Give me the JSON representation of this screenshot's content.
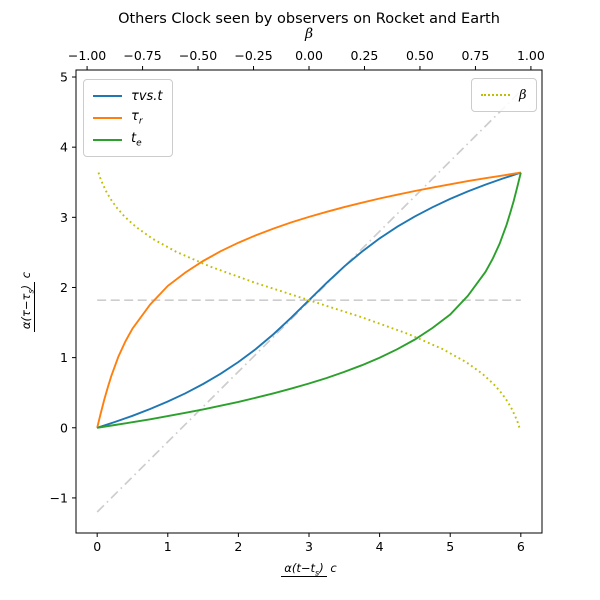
{
  "title": "Others Clock seen by observers on Rocket and Earth",
  "top_axis": {
    "label": "β",
    "ticks": [
      {
        "v": -1.0,
        "label": "−1.00"
      },
      {
        "v": -0.75,
        "label": "−0.75"
      },
      {
        "v": -0.5,
        "label": "−0.50"
      },
      {
        "v": -0.25,
        "label": "−0.25"
      },
      {
        "v": 0.0,
        "label": "0.00"
      },
      {
        "v": 0.25,
        "label": "0.25"
      },
      {
        "v": 0.5,
        "label": "0.50"
      },
      {
        "v": 0.75,
        "label": "0.75"
      },
      {
        "v": 1.0,
        "label": "1.00"
      }
    ]
  },
  "bottom_axis": {
    "ticks": [
      {
        "v": 0,
        "label": "0"
      },
      {
        "v": 1,
        "label": "1"
      },
      {
        "v": 2,
        "label": "2"
      },
      {
        "v": 3,
        "label": "3"
      },
      {
        "v": 4,
        "label": "4"
      },
      {
        "v": 5,
        "label": "5"
      },
      {
        "v": 6,
        "label": "6"
      }
    ],
    "label": {
      "num_pre": "α(t−t",
      "num_sub": "s",
      "num_post": ")",
      "den": "c"
    }
  },
  "left_axis": {
    "ticks": [
      {
        "v": -1,
        "label": "−1"
      },
      {
        "v": 0,
        "label": "0"
      },
      {
        "v": 1,
        "label": "1"
      },
      {
        "v": 2,
        "label": "2"
      },
      {
        "v": 3,
        "label": "3"
      },
      {
        "v": 4,
        "label": "4"
      },
      {
        "v": 5,
        "label": "5"
      }
    ],
    "label": {
      "num_pre": "α(τ−τ",
      "num_sub": "s",
      "num_post": ")",
      "den": "c"
    }
  },
  "legend_curves": {
    "items": [
      {
        "base": "τvs.t",
        "sub": "",
        "series": 0
      },
      {
        "base": "τ",
        "sub": "r",
        "series": 1
      },
      {
        "base": "t",
        "sub": "e",
        "series": 2
      }
    ]
  },
  "legend_beta": {
    "label": "β",
    "series": 3
  },
  "chart_data": {
    "type": "line",
    "title": "Others Clock seen by observers on Rocket and Earth",
    "xlabel": "α(t−t_s)/c",
    "ylabel": "α(τ−τ_s)/c",
    "top_xlabel": "β",
    "xlim": [
      -0.3,
      6.3
    ],
    "ylim": [
      -1.5,
      5.1
    ],
    "top_xlim": [
      -1.05,
      1.05
    ],
    "beta_to_x": {
      "x_center": 3.0,
      "x_per_beta": 3.143
    },
    "grid": false,
    "legend_positions": [
      "upper left",
      "upper right"
    ],
    "series": [
      {
        "name": "tau-vs-t",
        "label": "τ vs. t",
        "color": "#1f77b4",
        "style": "solid",
        "width": 1.9,
        "points": [
          [
            0,
            0
          ],
          [
            0.25,
            0.082
          ],
          [
            0.5,
            0.171
          ],
          [
            0.75,
            0.268
          ],
          [
            1,
            0.375
          ],
          [
            1.25,
            0.492
          ],
          [
            1.5,
            0.624
          ],
          [
            1.75,
            0.771
          ],
          [
            2,
            0.937
          ],
          [
            2.25,
            1.125
          ],
          [
            2.5,
            1.337
          ],
          [
            2.75,
            1.571
          ],
          [
            3,
            1.818
          ],
          [
            3.25,
            2.066
          ],
          [
            3.5,
            2.3
          ],
          [
            3.75,
            2.512
          ],
          [
            4,
            2.7
          ],
          [
            4.25,
            2.866
          ],
          [
            4.5,
            3.013
          ],
          [
            4.75,
            3.144
          ],
          [
            5,
            3.262
          ],
          [
            5.25,
            3.369
          ],
          [
            5.5,
            3.466
          ],
          [
            5.75,
            3.555
          ],
          [
            6,
            3.637
          ]
        ]
      },
      {
        "name": "tau-r",
        "label": "τ_r",
        "color": "#ff7f0e",
        "style": "solid",
        "width": 1.9,
        "points": [
          [
            0,
            0
          ],
          [
            0.02,
            0.082
          ],
          [
            0.05,
            0.203
          ],
          [
            0.1,
            0.398
          ],
          [
            0.15,
            0.576
          ],
          [
            0.2,
            0.738
          ],
          [
            0.3,
            1.014
          ],
          [
            0.4,
            1.231
          ],
          [
            0.5,
            1.413
          ],
          [
            0.75,
            1.756
          ],
          [
            1,
            2.023
          ],
          [
            1.25,
            2.214
          ],
          [
            1.5,
            2.378
          ],
          [
            1.75,
            2.517
          ],
          [
            2,
            2.638
          ],
          [
            2.25,
            2.745
          ],
          [
            2.5,
            2.841
          ],
          [
            2.75,
            2.927
          ],
          [
            3,
            3.006
          ],
          [
            3.25,
            3.079
          ],
          [
            3.5,
            3.146
          ],
          [
            3.75,
            3.209
          ],
          [
            4,
            3.268
          ],
          [
            4.25,
            3.323
          ],
          [
            4.5,
            3.375
          ],
          [
            4.75,
            3.424
          ],
          [
            5,
            3.471
          ],
          [
            5.25,
            3.516
          ],
          [
            5.5,
            3.558
          ],
          [
            5.75,
            3.598
          ],
          [
            6,
            3.637
          ]
        ]
      },
      {
        "name": "t-e",
        "label": "t_e",
        "color": "#2ca02c",
        "style": "solid",
        "width": 1.9,
        "points": [
          [
            0,
            0
          ],
          [
            0.25,
            0.039
          ],
          [
            0.5,
            0.079
          ],
          [
            0.75,
            0.121
          ],
          [
            1,
            0.166
          ],
          [
            1.25,
            0.213
          ],
          [
            1.5,
            0.262
          ],
          [
            1.75,
            0.314
          ],
          [
            2,
            0.369
          ],
          [
            2.25,
            0.428
          ],
          [
            2.5,
            0.491
          ],
          [
            2.75,
            0.558
          ],
          [
            3,
            0.631
          ],
          [
            3.25,
            0.71
          ],
          [
            3.5,
            0.796
          ],
          [
            3.75,
            0.892
          ],
          [
            4,
            0.999
          ],
          [
            4.25,
            1.12
          ],
          [
            4.5,
            1.259
          ],
          [
            4.75,
            1.423
          ],
          [
            5,
            1.614
          ],
          [
            5.25,
            1.881
          ],
          [
            5.5,
            2.224
          ],
          [
            5.6,
            2.406
          ],
          [
            5.7,
            2.623
          ],
          [
            5.8,
            2.899
          ],
          [
            5.85,
            3.061
          ],
          [
            5.9,
            3.239
          ],
          [
            5.95,
            3.434
          ],
          [
            5.98,
            3.555
          ],
          [
            6,
            3.637
          ]
        ]
      },
      {
        "name": "beta",
        "label": "β",
        "color": "#bfbf00",
        "style": "dotted",
        "width": 1.9,
        "points": [
          [
            0.018,
            3.637
          ],
          [
            0.046,
            3.555
          ],
          [
            0.082,
            3.466
          ],
          [
            0.128,
            3.369
          ],
          [
            0.189,
            3.262
          ],
          [
            0.271,
            3.145
          ],
          [
            0.385,
            3.013
          ],
          [
            0.546,
            2.866
          ],
          [
            0.777,
            2.7
          ],
          [
            1.114,
            2.512
          ],
          [
            1.594,
            2.3
          ],
          [
            2.238,
            2.066
          ],
          [
            3,
            1.818
          ],
          [
            3.762,
            1.571
          ],
          [
            4.406,
            1.337
          ],
          [
            4.886,
            1.125
          ],
          [
            5.223,
            0.937
          ],
          [
            5.454,
            0.771
          ],
          [
            5.615,
            0.624
          ],
          [
            5.729,
            0.492
          ],
          [
            5.811,
            0.375
          ],
          [
            5.872,
            0.268
          ],
          [
            5.918,
            0.171
          ],
          [
            5.954,
            0.082
          ],
          [
            5.982,
            0
          ]
        ]
      },
      {
        "name": "horizontal-dashed",
        "label": "",
        "color": "#cdcdcd",
        "style": "dashed",
        "width": 1.7,
        "points": [
          [
            0,
            1.818
          ],
          [
            6,
            1.818
          ]
        ]
      },
      {
        "name": "diagonal-dashdot",
        "label": "",
        "color": "#cdcdcd",
        "style": "dashdot",
        "width": 1.7,
        "points": [
          [
            0,
            -1.2
          ],
          [
            6,
            4.8
          ]
        ]
      }
    ]
  }
}
